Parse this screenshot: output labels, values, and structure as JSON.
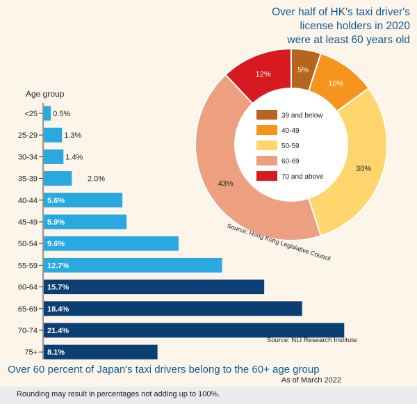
{
  "chart_data": [
    {
      "type": "bar",
      "orientation": "horizontal",
      "title": "Over 60 percent of Japan's taxi drivers belong to the 60+ age group",
      "ylabel": "Age group",
      "categories": [
        "<25",
        "25-29",
        "30-34",
        "35-39",
        "40-44",
        "45-49",
        "50-54",
        "55-59",
        "60-64",
        "65-69",
        "70-74",
        "75+"
      ],
      "values": [
        0.5,
        1.3,
        1.4,
        2.0,
        5.6,
        5.9,
        9.6,
        12.7,
        15.7,
        18.4,
        21.4,
        8.1
      ],
      "value_labels": [
        "0.5%",
        "1.3%",
        "1.4%",
        "2.0%",
        "5.6%",
        "5.9%",
        "9.6%",
        "12.7%",
        "15.7%",
        "18.4%",
        "21.4%",
        "8.1%"
      ],
      "colors": {
        "under_60": "#29a9e0",
        "60_plus": "#0b3f74"
      },
      "source": "Source: NLI Research Institute",
      "date_note": "As of March 2022"
    },
    {
      "type": "pie",
      "donut": true,
      "title_lines": [
        "Over half of HK's taxi driver's",
        "license holders in 2020",
        "were at least 60 years old"
      ],
      "slices": [
        {
          "label": "39 and below",
          "value": 5,
          "text": "5%",
          "color": "#b5651d"
        },
        {
          "label": "40-49",
          "value": 10,
          "text": "10%",
          "color": "#f7941d"
        },
        {
          "label": "50-59",
          "value": 30,
          "text": "30%",
          "color": "#fed66d"
        },
        {
          "label": "60-69",
          "value": 43,
          "text": "43%",
          "color": "#eda080"
        },
        {
          "label": "70 and above",
          "value": 12,
          "text": "12%",
          "color": "#d71920"
        }
      ],
      "source": "Source: Hong Kong Legislative Council"
    }
  ],
  "note": "Rounding may result in percentages not adding up to 100%."
}
